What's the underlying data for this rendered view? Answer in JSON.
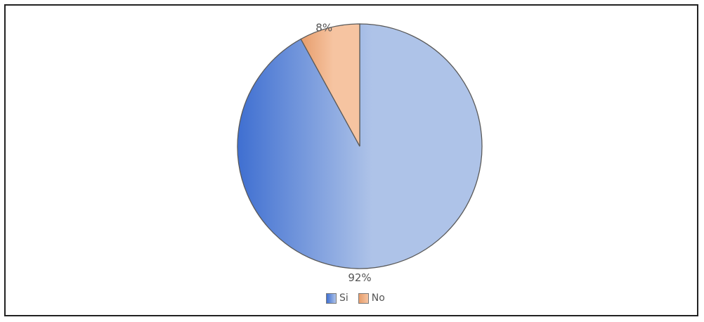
{
  "chart_data": {
    "type": "pie",
    "title": "",
    "slices": [
      {
        "label": "Si",
        "value": 92,
        "display": "92%",
        "color": "#aec3e8",
        "edge_color": "#3f6fd1"
      },
      {
        "label": "No",
        "value": 8,
        "display": "8%",
        "color": "#f6c4a1",
        "edge_color": "#e79d6c"
      }
    ],
    "start_angle_deg": 0,
    "direction": "clockwise",
    "legend_position": "bottom-center"
  }
}
